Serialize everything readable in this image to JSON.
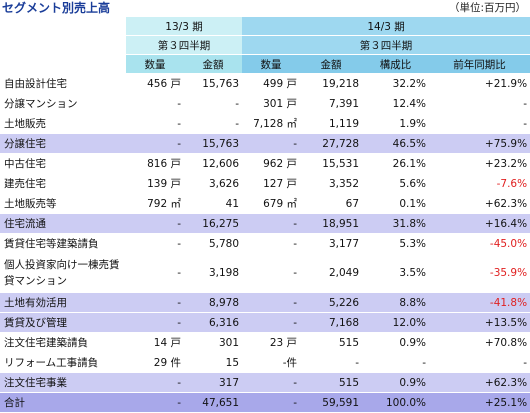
{
  "title": "セグメント別売上高",
  "unit": "（単位:百万円）",
  "header": {
    "period_prev": "13/3 期",
    "quarter_prev": "第３四半期",
    "period_curr": "14/3 期",
    "quarter_curr": "第３四半期",
    "col_qty": "数量",
    "col_amount": "金額",
    "col_qty2": "数量",
    "col_amount2": "金額",
    "col_ratio": "構成比",
    "col_yoy": "前年同期比"
  },
  "rows": [
    {
      "label": "自由設計住宅",
      "q13": "456 戸",
      "a13": "15,763",
      "q14": "499 戸",
      "a14": "19,218",
      "ratio": "32.2%",
      "yoy": "+21.9%",
      "neg": false
    },
    {
      "label": "分譲マンション",
      "q13": "-",
      "a13": "-",
      "q14": "301 戸",
      "a14": "7,391",
      "ratio": "12.4%",
      "yoy": "-",
      "neg": false
    },
    {
      "label": "土地販売",
      "q13": "-",
      "a13": "-",
      "q14": "7,128 ㎡",
      "a14": "1,119",
      "ratio": "1.9%",
      "yoy": "-",
      "neg": false
    },
    {
      "label": "分譲住宅",
      "q13": "-",
      "a13": "15,763",
      "q14": "-",
      "a14": "27,728",
      "ratio": "46.5%",
      "yoy": "+75.9%",
      "neg": false
    },
    {
      "label": "中古住宅",
      "q13": "816 戸",
      "a13": "12,606",
      "q14": "962 戸",
      "a14": "15,531",
      "ratio": "26.1%",
      "yoy": "+23.2%",
      "neg": false
    },
    {
      "label": "建売住宅",
      "q13": "139 戸",
      "a13": "3,626",
      "q14": "127 戸",
      "a14": "3,352",
      "ratio": "5.6%",
      "yoy": "-7.6%",
      "neg": true
    },
    {
      "label": "土地販売等",
      "q13": "792 ㎡",
      "a13": "41",
      "q14": "679 ㎡",
      "a14": "67",
      "ratio": "0.1%",
      "yoy": "+62.3%",
      "neg": false
    },
    {
      "label": "住宅流通",
      "q13": "-",
      "a13": "16,275",
      "q14": "-",
      "a14": "18,951",
      "ratio": "31.8%",
      "yoy": "+16.4%",
      "neg": false
    },
    {
      "label": "賃貸住宅等建築請負",
      "q13": "-",
      "a13": "5,780",
      "q14": "-",
      "a14": "3,177",
      "ratio": "5.3%",
      "yoy": "-45.0%",
      "neg": true
    },
    {
      "label": "個人投資家向け一棟売賃貸マンション",
      "q13": "-",
      "a13": "3,198",
      "q14": "-",
      "a14": "2,049",
      "ratio": "3.5%",
      "yoy": "-35.9%",
      "neg": true
    },
    {
      "label": "土地有効活用",
      "q13": "-",
      "a13": "8,978",
      "q14": "-",
      "a14": "5,226",
      "ratio": "8.8%",
      "yoy": "-41.8%",
      "neg": true
    },
    {
      "label": "賃貸及び管理",
      "q13": "-",
      "a13": "6,316",
      "q14": "-",
      "a14": "7,168",
      "ratio": "12.0%",
      "yoy": "+13.5%",
      "neg": false
    },
    {
      "label": "注文住宅建築請負",
      "q13": "14 戸",
      "a13": "301",
      "q14": "23 戸",
      "a14": "515",
      "ratio": "0.9%",
      "yoy": "+70.8%",
      "neg": false
    },
    {
      "label": "リフォーム工事請負",
      "q13": "29 件",
      "a13": "15",
      "q14": "-件",
      "a14": "-",
      "ratio": "-",
      "yoy": "-",
      "neg": false
    },
    {
      "label": "注文住宅事業",
      "q13": "-",
      "a13": "317",
      "q14": "-",
      "a14": "515",
      "ratio": "0.9%",
      "yoy": "+62.3%",
      "neg": false
    },
    {
      "label": "合計",
      "q13": "-",
      "a13": "47,651",
      "q14": "-",
      "a14": "59,591",
      "ratio": "100.0%",
      "yoy": "+25.1%",
      "neg": false
    }
  ]
}
